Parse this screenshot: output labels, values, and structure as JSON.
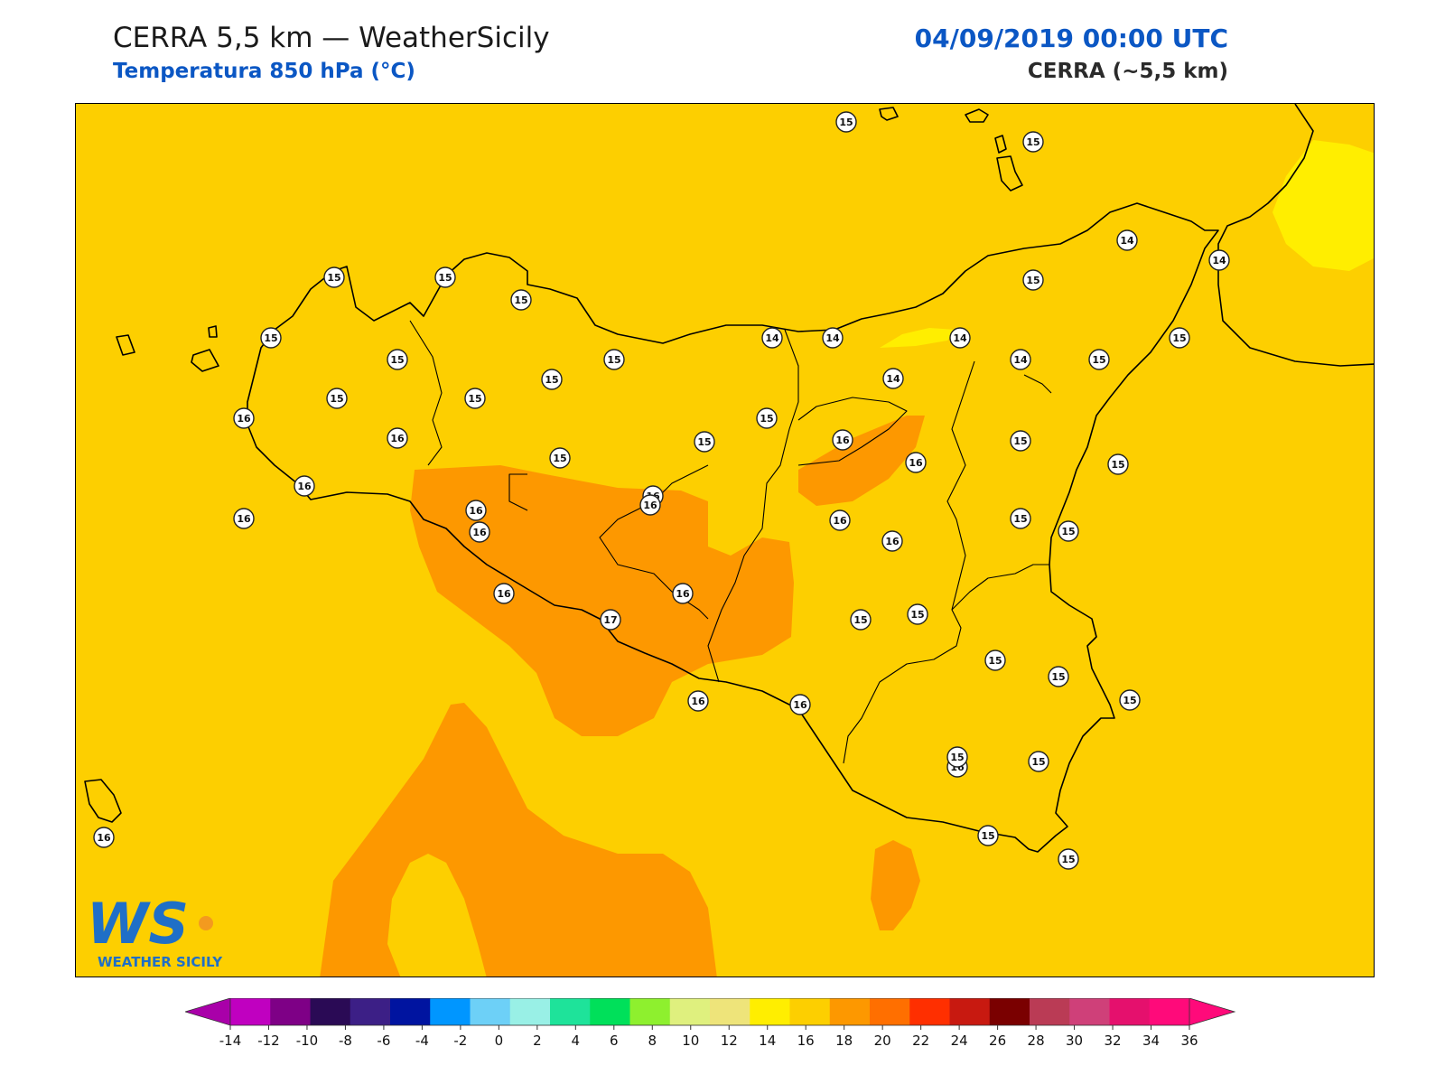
{
  "header": {
    "title": "CERRA 5,5 km — WeatherSicily",
    "subtitle": "Temperatura 850 hPa (°C)",
    "datetime": "04/09/2019 00:00 UTC",
    "model_label": "CERRA (~5,5 km)"
  },
  "logo": {
    "letters": "WS",
    "text": "WEATHER SICILY"
  },
  "colors": {
    "background_14_16": "#fdcf00",
    "field_16_18": "#fd9800",
    "field_12_14": "#ffee00",
    "coastline": "#000000",
    "title_blue": "#0b57c4"
  },
  "chart_data": {
    "type": "heatmap",
    "variable": "Temperatura 850 hPa (°C)",
    "colorbar": {
      "ticks": [
        -14,
        -12,
        -10,
        -8,
        -6,
        -4,
        -2,
        0,
        2,
        4,
        6,
        8,
        10,
        12,
        14,
        16,
        18,
        20,
        22,
        24,
        26,
        28,
        30,
        32,
        34,
        36
      ],
      "colors": [
        "#c000c0",
        "#7e0086",
        "#2a0a55",
        "#3c1f86",
        "#0014a0",
        "#0096ff",
        "#6dd0f7",
        "#99f0e6",
        "#1ee39a",
        "#00e05a",
        "#8ef02e",
        "#dff07e",
        "#eee47a",
        "#ffee00",
        "#fdcf00",
        "#fd9800",
        "#ff6f00",
        "#ff2f00",
        "#c81910",
        "#7a0000",
        "#ba3b55",
        "#cf4079",
        "#e5106d",
        "#ff0a7a"
      ],
      "extend_low_color": "#a900a9",
      "extend_high_color": "#ff0a7a"
    },
    "station_values": [
      {
        "label": "15"
      },
      {
        "label": "15"
      },
      {
        "label": "14"
      },
      {
        "label": "14"
      },
      {
        "label": "15"
      },
      {
        "label": "15"
      },
      {
        "label": "15"
      },
      {
        "label": "15"
      },
      {
        "label": "15"
      },
      {
        "label": "15"
      },
      {
        "label": "15"
      },
      {
        "label": "14"
      },
      {
        "label": "14"
      },
      {
        "label": "14"
      },
      {
        "label": "14"
      },
      {
        "label": "15"
      },
      {
        "label": "15"
      },
      {
        "label": "15"
      },
      {
        "label": "16"
      },
      {
        "label": "15"
      },
      {
        "label": "14"
      },
      {
        "label": "16"
      },
      {
        "label": "15"
      },
      {
        "label": "15"
      },
      {
        "label": "16"
      },
      {
        "label": "16"
      },
      {
        "label": "15"
      },
      {
        "label": "15"
      },
      {
        "label": "15"
      },
      {
        "label": "16"
      },
      {
        "label": "15"
      },
      {
        "label": "16"
      },
      {
        "label": "16"
      },
      {
        "label": "16"
      },
      {
        "label": "15"
      },
      {
        "label": "16"
      },
      {
        "label": "16"
      },
      {
        "label": "16"
      },
      {
        "label": "16"
      },
      {
        "label": "15"
      },
      {
        "label": "16"
      },
      {
        "label": "17"
      },
      {
        "label": "16"
      },
      {
        "label": "15"
      },
      {
        "label": "15"
      },
      {
        "label": "15"
      },
      {
        "label": "15"
      },
      {
        "label": "15"
      },
      {
        "label": "16"
      },
      {
        "label": "16"
      },
      {
        "label": "16"
      },
      {
        "label": "15"
      },
      {
        "label": "15"
      },
      {
        "label": "15"
      },
      {
        "label": "15"
      },
      {
        "label": "16"
      }
    ]
  }
}
